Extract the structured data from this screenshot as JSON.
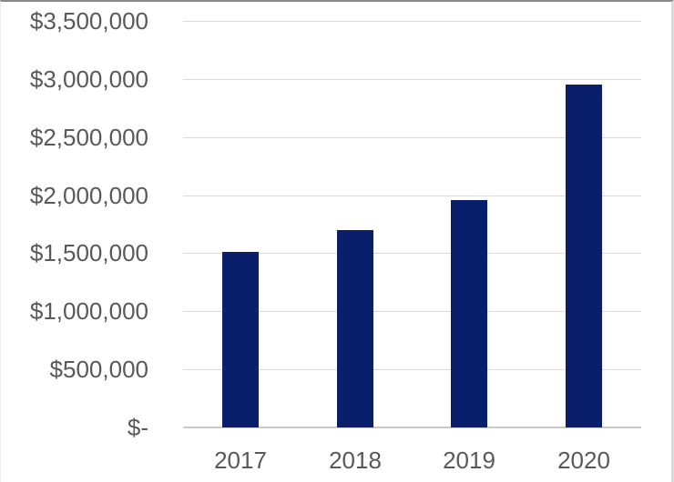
{
  "chart_data": {
    "type": "bar",
    "title": "",
    "xlabel": "",
    "ylabel": "",
    "categories": [
      "2017",
      "2018",
      "2019",
      "2020"
    ],
    "values": [
      1510000,
      1700000,
      1960000,
      2950000
    ],
    "ylim": [
      0,
      3500000
    ],
    "ytick_interval": 500000,
    "yticks": [
      {
        "value": 0,
        "label": "$-"
      },
      {
        "value": 500000,
        "label": "$500,000"
      },
      {
        "value": 1000000,
        "label": "$1,000,000"
      },
      {
        "value": 1500000,
        "label": "$1,500,000"
      },
      {
        "value": 2000000,
        "label": "$2,000,000"
      },
      {
        "value": 2500000,
        "label": "$2,500,000"
      },
      {
        "value": 3000000,
        "label": "$3,000,000"
      },
      {
        "value": 3500000,
        "label": "$3,500,000"
      }
    ],
    "grid": true,
    "legend": false,
    "colors": {
      "bar": "#0A1F6B",
      "gridline": "#D9D9D9",
      "axis_line": "#C9C9C9",
      "tick_text": "#595959"
    }
  }
}
